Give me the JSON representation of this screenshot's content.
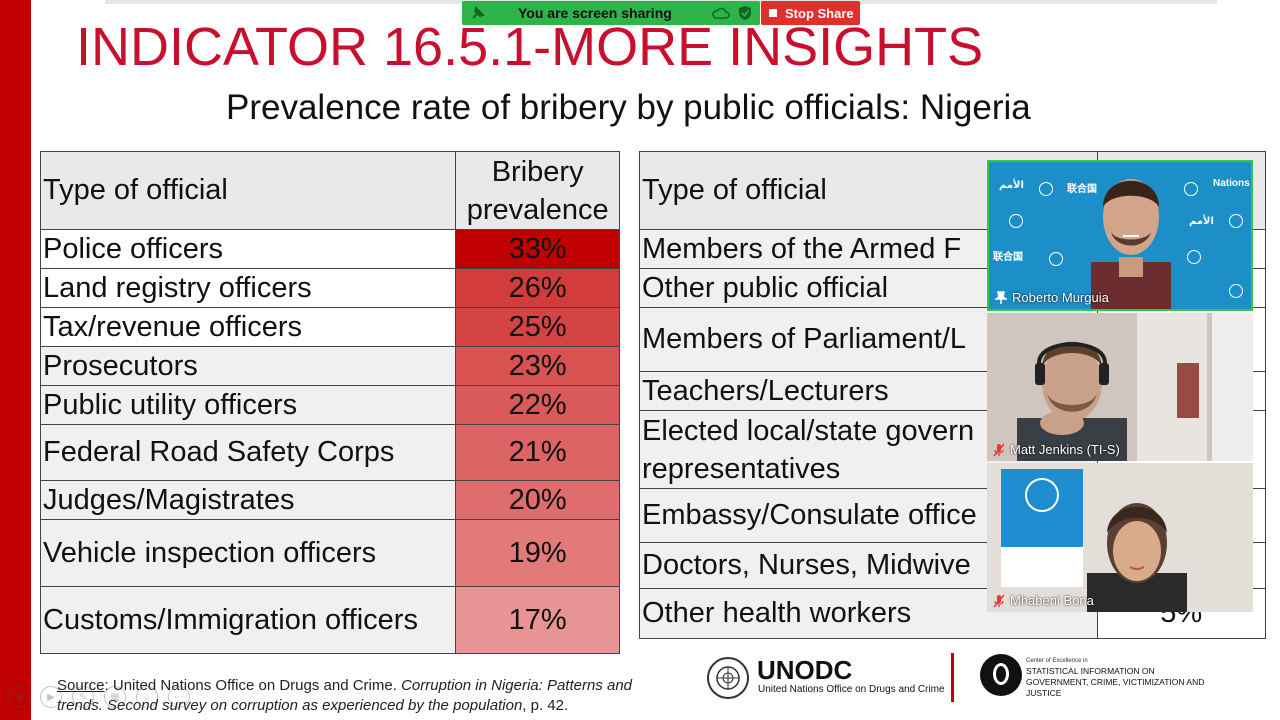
{
  "zoom_share": {
    "status_text": "You are screen sharing",
    "stop_label": "Stop Share"
  },
  "slide": {
    "title": "INDICATOR 16.5.1-MORE INSIGHTS",
    "subtitle": "Prevalence rate of bribery by public officials: Nigeria",
    "table_left": {
      "header_type": "Type of official",
      "header_value_line1": "Bribery",
      "header_value_line2": "prevalence",
      "rows": [
        {
          "type": "Police officers",
          "value": "33%",
          "color": "#c00000"
        },
        {
          "type": "Land registry officers",
          "value": "26%",
          "color": "#d23c3c"
        },
        {
          "type": "Tax/revenue officers",
          "value": "25%",
          "color": "#d54444"
        },
        {
          "type": "Prosecutors",
          "value": "23%",
          "color": "#d85252"
        },
        {
          "type": "Public utility officers",
          "value": "22%",
          "color": "#da5a5a"
        },
        {
          "type": "Federal Road Safety Corps",
          "value": "21%",
          "color": "#dd6464"
        },
        {
          "type": "Judges/Magistrates",
          "value": "20%",
          "color": "#df6d6d"
        },
        {
          "type": "Vehicle inspection officers",
          "value": "19%",
          "color": "#e27a7a"
        },
        {
          "type": "Customs/Immigration officers",
          "value": "17%",
          "color": "#e69494"
        }
      ]
    },
    "table_right": {
      "header_type": "Type of official",
      "rows": [
        {
          "type": "Members of the Armed F",
          "value": ""
        },
        {
          "type": "Other public official",
          "value": ""
        },
        {
          "type": "Members of Parliament/L",
          "value": ""
        },
        {
          "type": "Teachers/Lecturers",
          "value": ""
        },
        {
          "type": "Elected local/state govern representatives",
          "value": ""
        },
        {
          "type": "Embassy/Consulate office",
          "value": ""
        },
        {
          "type": "Doctors, Nurses, Midwive",
          "value": ""
        },
        {
          "type": "Other health workers",
          "value": "5%"
        }
      ]
    },
    "source": {
      "label": "Source",
      "text": ": United Nations Office on Drugs and Crime. ",
      "italic": "Corruption in Nigeria: Patterns and trends. Second survey on corruption as experienced by the population",
      "tail": ", p. 42."
    },
    "logos": {
      "unodc_name": "UNODC",
      "unodc_full": "United Nations Office on Drugs and Crime",
      "coe_small": "Center of Excellence in",
      "coe_big": "STATISTICAL INFORMATION ON GOVERNMENT, CRIME, VICTIMIZATION AND JUSTICE"
    }
  },
  "participants": [
    {
      "name": "Roberto Murguia",
      "muted": false,
      "pinned": true
    },
    {
      "name": "Matt Jenkins (TI-S)",
      "muted": true,
      "pinned": false
    },
    {
      "name": "Mhabeni Bona",
      "muted": true,
      "pinned": false
    }
  ],
  "colors": {
    "brand_red": "#c00000",
    "title_red": "#c8102e",
    "share_green": "#2fb44a",
    "stop_red": "#e0302b",
    "active_speaker_border": "#34c84a"
  }
}
